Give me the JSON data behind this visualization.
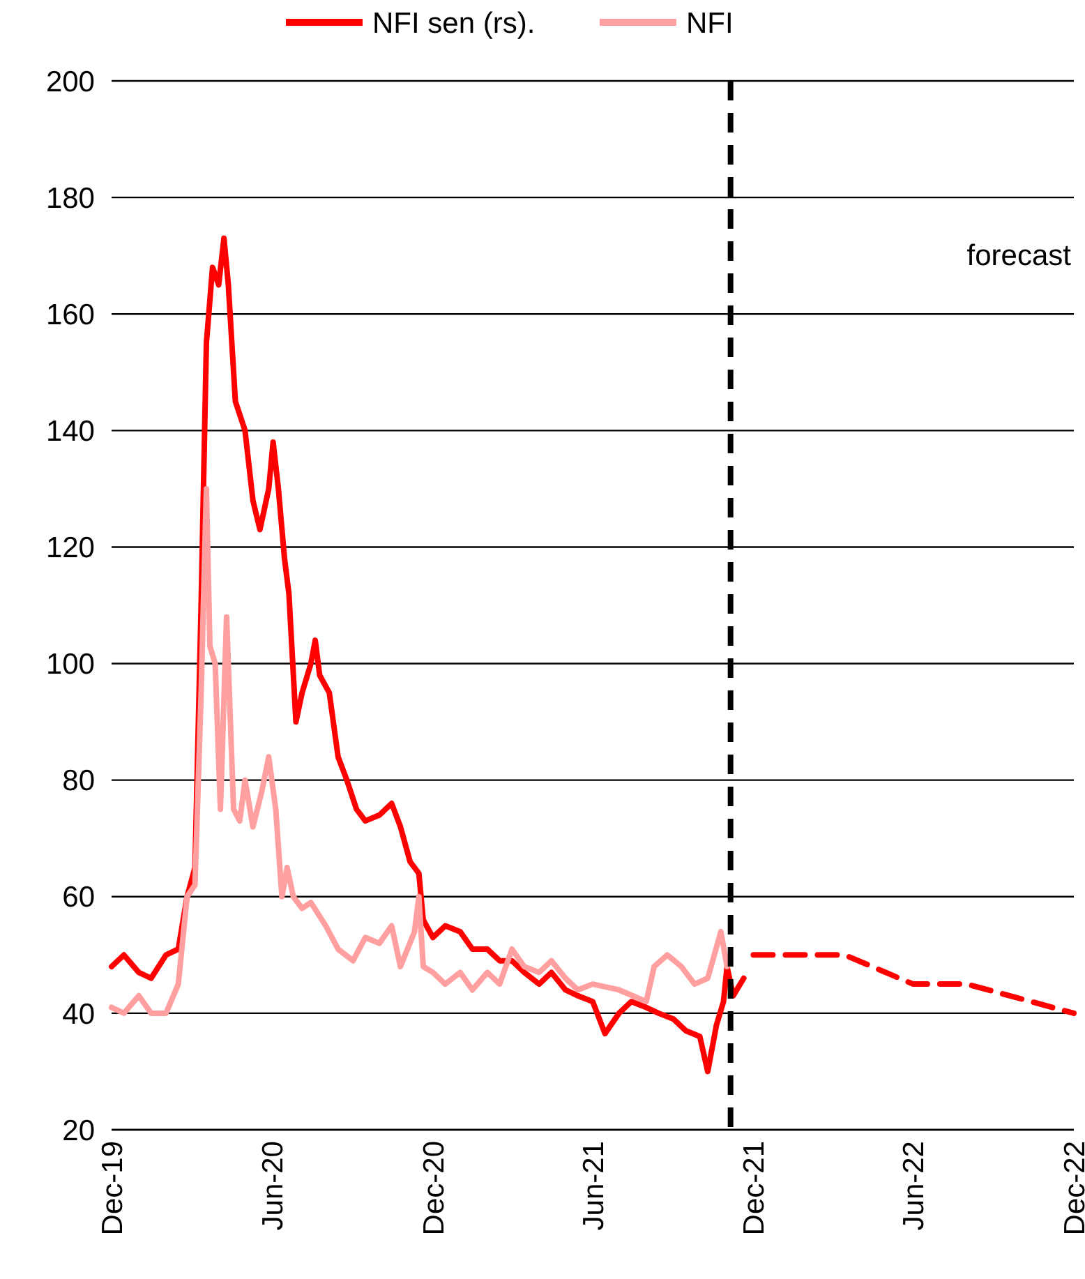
{
  "chart_data": {
    "type": "line",
    "x": [
      "2019-12-01",
      "2019-12-15",
      "2020-01-01",
      "2020-01-15",
      "2020-02-01",
      "2020-02-15",
      "2020-02-25",
      "2020-03-05",
      "2020-03-12",
      "2020-03-18",
      "2020-03-25",
      "2020-04-01",
      "2020-04-07",
      "2020-04-12",
      "2020-04-20",
      "2020-05-01",
      "2020-05-10",
      "2020-05-18",
      "2020-05-28",
      "2020-06-02",
      "2020-06-08",
      "2020-06-15",
      "2020-06-20",
      "2020-06-28",
      "2020-07-05",
      "2020-07-15",
      "2020-07-20",
      "2020-07-25",
      "2020-08-05",
      "2020-08-15",
      "2020-08-25",
      "2020-09-05",
      "2020-09-15",
      "2020-10-01",
      "2020-10-15",
      "2020-10-25",
      "2020-11-05",
      "2020-11-15",
      "2020-11-20",
      "2020-12-01",
      "2020-12-15",
      "2021-01-01",
      "2021-01-15",
      "2021-02-01",
      "2021-02-15",
      "2021-03-01",
      "2021-03-15",
      "2021-04-01",
      "2021-04-15",
      "2021-05-01",
      "2021-05-15",
      "2021-06-01",
      "2021-06-15",
      "2021-07-01",
      "2021-07-15",
      "2021-08-01",
      "2021-08-15",
      "2021-09-01",
      "2021-09-15",
      "2021-10-01",
      "2021-10-10",
      "2021-10-20",
      "2021-10-28",
      "2021-11-01",
      "2021-11-08",
      "2021-11-20"
    ],
    "series": [
      {
        "name": "NFI sen (rs).",
        "color": "#ff0000",
        "line_style": "solid",
        "values": [
          48,
          50,
          47,
          46,
          50,
          51,
          60,
          65,
          110,
          155,
          168,
          165,
          173,
          165,
          145,
          140,
          128,
          123,
          130,
          138,
          130,
          118,
          112,
          90,
          95,
          100,
          104,
          98,
          95,
          84,
          80,
          75,
          73,
          74,
          76,
          72,
          66,
          64,
          56,
          53,
          55,
          54,
          51,
          51,
          49,
          49,
          47,
          45,
          47,
          44,
          43,
          42,
          36.5,
          40,
          42,
          41,
          40,
          39,
          37,
          36,
          30,
          38,
          42,
          48,
          43,
          46
        ]
      },
      {
        "color": "#ff0000",
        "line_style": "dashed",
        "x": [
          "2021-12-01",
          "2022-03-15",
          "2022-06-01",
          "2022-08-01",
          "2022-12-01"
        ],
        "values": [
          50,
          50,
          45,
          45,
          40
        ]
      },
      {
        "name": "NFI",
        "color": "#ff9f9f",
        "line_style": "solid",
        "x": [
          "2019-12-01",
          "2019-12-15",
          "2020-01-01",
          "2020-01-15",
          "2020-02-01",
          "2020-02-15",
          "2020-02-25",
          "2020-03-05",
          "2020-03-12",
          "2020-03-18",
          "2020-03-22",
          "2020-03-28",
          "2020-04-03",
          "2020-04-10",
          "2020-04-18",
          "2020-04-25",
          "2020-05-01",
          "2020-05-10",
          "2020-05-20",
          "2020-05-28",
          "2020-06-05",
          "2020-06-12",
          "2020-06-18",
          "2020-06-25",
          "2020-07-05",
          "2020-07-15",
          "2020-08-01",
          "2020-08-15",
          "2020-09-01",
          "2020-09-15",
          "2020-10-01",
          "2020-10-15",
          "2020-10-25",
          "2020-11-10",
          "2020-11-15",
          "2020-11-20",
          "2020-12-01",
          "2020-12-15",
          "2021-01-01",
          "2021-01-15",
          "2021-02-01",
          "2021-02-15",
          "2021-03-01",
          "2021-03-15",
          "2021-04-01",
          "2021-04-15",
          "2021-05-01",
          "2021-05-15",
          "2021-06-01",
          "2021-07-01",
          "2021-08-01",
          "2021-08-10",
          "2021-08-25",
          "2021-09-10",
          "2021-09-25",
          "2021-10-10",
          "2021-10-25",
          "2021-11-01"
        ],
        "values": [
          41,
          40,
          43,
          40,
          40,
          45,
          60,
          62,
          95,
          130,
          103,
          100,
          75,
          108,
          75,
          73,
          80,
          72,
          78,
          84,
          75,
          60,
          65,
          60,
          58,
          59,
          55,
          51,
          49,
          53,
          52,
          55,
          48,
          54,
          60,
          48,
          47,
          45,
          47,
          44,
          47,
          45,
          51,
          48,
          47,
          49,
          46,
          44,
          45,
          44,
          42,
          48,
          50,
          48,
          45,
          46,
          54,
          48
        ]
      }
    ],
    "xlim": [
      "2019-12-01",
      "2022-12-01"
    ],
    "xticks": [
      {
        "value": "2019-12-01",
        "label": "Dec-19"
      },
      {
        "value": "2020-06-01",
        "label": "Jun-20"
      },
      {
        "value": "2020-12-01",
        "label": "Dec-20"
      },
      {
        "value": "2021-06-01",
        "label": "Jun-21"
      },
      {
        "value": "2021-12-01",
        "label": "Dec-21"
      },
      {
        "value": "2022-06-01",
        "label": "Jun-22"
      },
      {
        "value": "2022-12-01",
        "label": "Dec-22"
      }
    ],
    "ylim": [
      20,
      200
    ],
    "yticks": [
      20,
      40,
      60,
      80,
      100,
      120,
      140,
      160,
      180,
      200
    ],
    "grid": "y",
    "legend": "top",
    "ref_lines": [
      {
        "axis": "x",
        "value": "2021-11-05",
        "color": "#000000",
        "line_style": "dashed"
      }
    ],
    "annotations": [
      "forecast"
    ]
  }
}
